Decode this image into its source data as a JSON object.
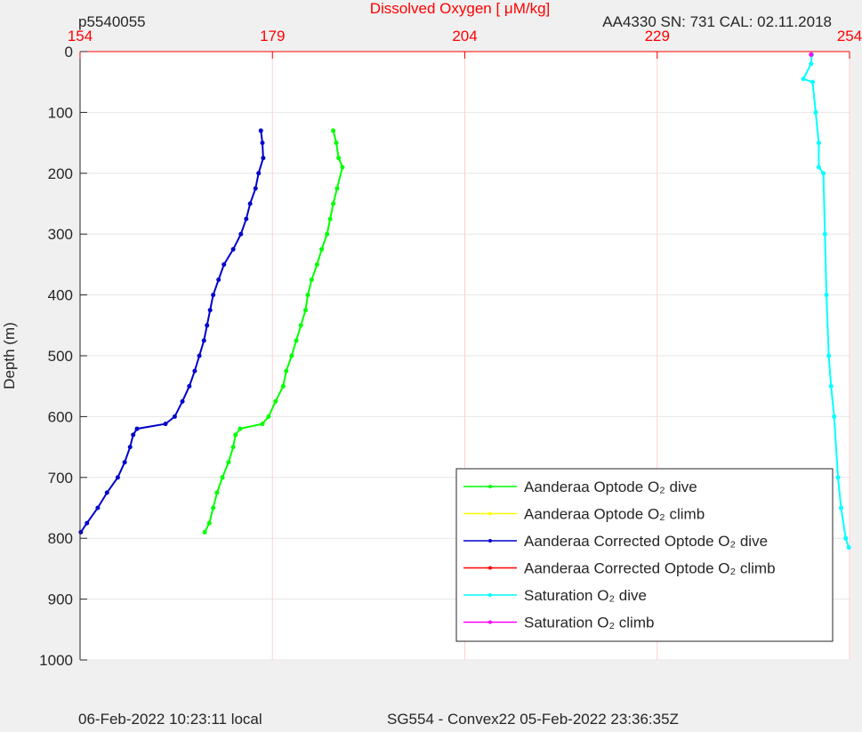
{
  "chart_data": {
    "type": "line",
    "title": "Dissolved Oxygen [ μM/kg]",
    "top_left_text": "p5540055",
    "top_right_text": "AA4330   SN: 731   CAL: 02.11.2018",
    "footer_left": "06-Feb-2022 10:23:11 local",
    "footer_right": "SG554 - Convex22 05-Feb-2022 23:36:35Z",
    "y_label": "Depth (m)",
    "xlim": [
      154,
      254
    ],
    "xticks": [
      154,
      179,
      204,
      229,
      254
    ],
    "ylim": [
      0,
      1000
    ],
    "yticks": [
      0,
      100,
      200,
      300,
      400,
      500,
      600,
      700,
      800,
      900,
      1000
    ],
    "y_reversed": true,
    "grid": true,
    "legend_position": "lower right",
    "series": [
      {
        "name": "Aanderaa Optode O₂ dive",
        "color": "#00ff00",
        "depth": [
          130,
          150,
          175,
          190,
          225,
          250,
          275,
          300,
          325,
          350,
          375,
          400,
          425,
          450,
          475,
          500,
          525,
          550,
          575,
          600,
          612,
          620,
          630,
          650,
          675,
          700,
          725,
          750,
          775,
          790
        ],
        "values": [
          186.9,
          187.3,
          187.6,
          188.1,
          187.4,
          186.9,
          186.5,
          186.1,
          185.4,
          184.8,
          184.1,
          183.6,
          183.3,
          182.7,
          182.1,
          181.5,
          180.8,
          180.4,
          179.4,
          178.5,
          177.7,
          174.8,
          174.2,
          173.9,
          173.3,
          172.5,
          171.8,
          171.3,
          170.8,
          170.2
        ]
      },
      {
        "name": "Aanderaa Optode O₂ climb",
        "color": "#ffff00",
        "depth": [],
        "values": []
      },
      {
        "name": "Aanderaa Corrected Optode O₂ dive",
        "color": "#0000cc",
        "depth": [
          130,
          150,
          175,
          200,
          225,
          250,
          275,
          300,
          325,
          350,
          375,
          400,
          425,
          450,
          475,
          500,
          525,
          550,
          575,
          600,
          612,
          620,
          630,
          650,
          675,
          700,
          725,
          750,
          775,
          790
        ],
        "values": [
          177.5,
          177.7,
          177.8,
          177.2,
          176.8,
          176.1,
          175.6,
          174.9,
          173.9,
          172.7,
          172.0,
          171.3,
          170.9,
          170.5,
          170.1,
          169.5,
          168.9,
          168.2,
          167.3,
          166.3,
          165.1,
          161.4,
          160.9,
          160.5,
          159.8,
          158.9,
          157.5,
          156.3,
          154.9,
          154.1
        ]
      },
      {
        "name": "Aanderaa Corrected Optode O₂ climb",
        "color": "#ff0000",
        "depth": [],
        "values": []
      },
      {
        "name": "Saturation O₂ dive",
        "color": "#00ffff",
        "depth": [
          5,
          20,
          45,
          50,
          100,
          150,
          190,
          200,
          300,
          400,
          500,
          550,
          600,
          700,
          750,
          800,
          815
        ],
        "values": [
          249.1,
          249.0,
          248.0,
          249.2,
          249.6,
          250.0,
          250.0,
          250.6,
          250.8,
          251.0,
          251.3,
          251.6,
          252.0,
          252.5,
          252.9,
          253.5,
          253.9
        ]
      },
      {
        "name": "Saturation O₂ climb",
        "color": "#ff00ff",
        "depth": [
          5
        ],
        "values": [
          249.0
        ]
      }
    ]
  }
}
